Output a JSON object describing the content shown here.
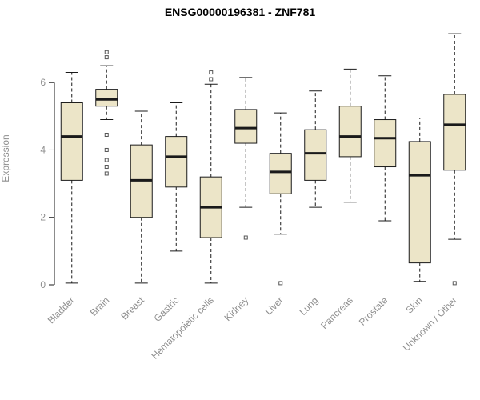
{
  "chart_data": {
    "type": "boxplot",
    "title": "ENSG00000196381 - ZNF781",
    "ylabel": "Expression",
    "xlabel": "",
    "ylim": [
      0,
      7.5
    ],
    "yticks": [
      0,
      2,
      4,
      6
    ],
    "grid": false,
    "legend": "none",
    "box_fill": "#ece5c8",
    "axis_color": "#1a1a1a",
    "label_color": "#8f8f8f",
    "outlier_color": "#555555",
    "categories": [
      "Bladder",
      "Brain",
      "Breast",
      "Gastric",
      "Hematopoietic cells",
      "Kidney",
      "Liver",
      "Lung",
      "Pancreas",
      "Prostate",
      "Skin",
      "Unknown / Other"
    ],
    "series": [
      {
        "category": "Bladder",
        "low": 0.05,
        "q1": 3.1,
        "median": 4.4,
        "q3": 5.4,
        "high": 6.3,
        "outliers": []
      },
      {
        "category": "Brain",
        "low": 4.9,
        "q1": 5.3,
        "median": 5.5,
        "q3": 5.8,
        "high": 6.5,
        "outliers": [
          6.9,
          6.75,
          4.45,
          4.0,
          3.7,
          3.5,
          3.3
        ]
      },
      {
        "category": "Breast",
        "low": 0.05,
        "q1": 2.0,
        "median": 3.1,
        "q3": 4.15,
        "high": 5.15,
        "outliers": []
      },
      {
        "category": "Gastric",
        "low": 1.0,
        "q1": 2.9,
        "median": 3.8,
        "q3": 4.4,
        "high": 5.4,
        "outliers": []
      },
      {
        "category": "Hematopoietic cells",
        "low": 0.05,
        "q1": 1.4,
        "median": 2.3,
        "q3": 3.2,
        "high": 5.95,
        "outliers": [
          6.1,
          6.3
        ]
      },
      {
        "category": "Kidney",
        "low": 2.3,
        "q1": 4.2,
        "median": 4.65,
        "q3": 5.2,
        "high": 6.15,
        "outliers": [
          1.4
        ]
      },
      {
        "category": "Liver",
        "low": 1.5,
        "q1": 2.7,
        "median": 3.35,
        "q3": 3.9,
        "high": 5.1,
        "outliers": [
          0.05
        ]
      },
      {
        "category": "Lung",
        "low": 2.3,
        "q1": 3.1,
        "median": 3.9,
        "q3": 4.6,
        "high": 5.75,
        "outliers": []
      },
      {
        "category": "Pancreas",
        "low": 2.45,
        "q1": 3.8,
        "median": 4.4,
        "q3": 5.3,
        "high": 6.4,
        "outliers": []
      },
      {
        "category": "Prostate",
        "low": 1.9,
        "q1": 3.5,
        "median": 4.35,
        "q3": 4.9,
        "high": 6.2,
        "outliers": []
      },
      {
        "category": "Skin",
        "low": 0.1,
        "q1": 0.65,
        "median": 3.25,
        "q3": 4.25,
        "high": 4.95,
        "outliers": []
      },
      {
        "category": "Unknown / Other",
        "low": 1.35,
        "q1": 3.4,
        "median": 4.75,
        "q3": 5.65,
        "high": 7.45,
        "outliers": [
          0.05
        ]
      }
    ]
  }
}
